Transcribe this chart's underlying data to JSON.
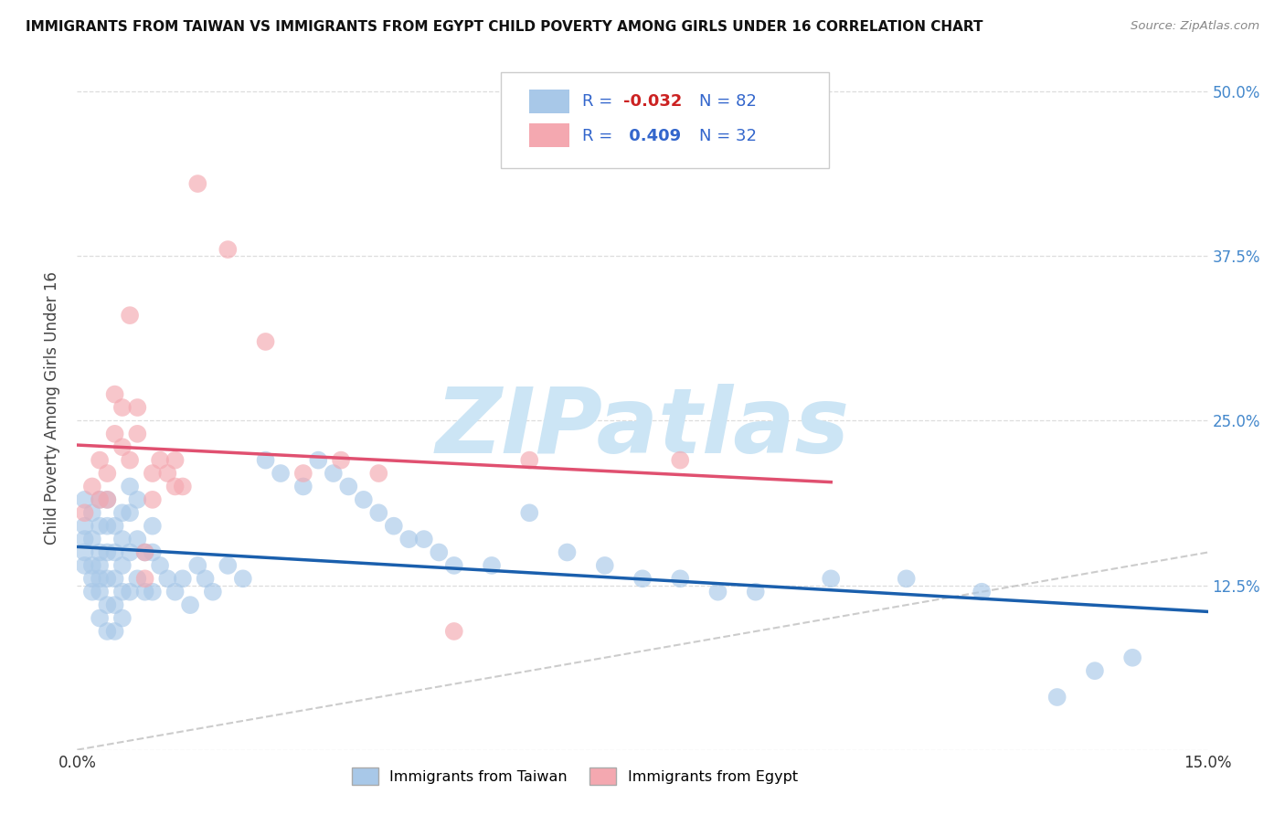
{
  "title": "IMMIGRANTS FROM TAIWAN VS IMMIGRANTS FROM EGYPT CHILD POVERTY AMONG GIRLS UNDER 16 CORRELATION CHART",
  "source": "Source: ZipAtlas.com",
  "ylabel": "Child Poverty Among Girls Under 16",
  "xlim": [
    0.0,
    0.15
  ],
  "ylim": [
    0.0,
    0.52
  ],
  "taiwan_color": "#a8c8e8",
  "egypt_color": "#f4a8b0",
  "taiwan_R": -0.032,
  "taiwan_N": 82,
  "egypt_R": 0.409,
  "egypt_N": 32,
  "taiwan_line_color": "#1a5fad",
  "egypt_line_color": "#e05070",
  "diagonal_line_color": "#c0c0c0",
  "taiwan_scatter_x": [
    0.001,
    0.001,
    0.001,
    0.001,
    0.001,
    0.002,
    0.002,
    0.002,
    0.002,
    0.002,
    0.003,
    0.003,
    0.003,
    0.003,
    0.003,
    0.003,
    0.003,
    0.004,
    0.004,
    0.004,
    0.004,
    0.004,
    0.004,
    0.005,
    0.005,
    0.005,
    0.005,
    0.005,
    0.006,
    0.006,
    0.006,
    0.006,
    0.006,
    0.007,
    0.007,
    0.007,
    0.007,
    0.008,
    0.008,
    0.008,
    0.009,
    0.009,
    0.01,
    0.01,
    0.01,
    0.011,
    0.012,
    0.013,
    0.014,
    0.015,
    0.016,
    0.017,
    0.018,
    0.02,
    0.022,
    0.025,
    0.027,
    0.03,
    0.032,
    0.034,
    0.036,
    0.038,
    0.04,
    0.042,
    0.044,
    0.046,
    0.048,
    0.05,
    0.055,
    0.06,
    0.065,
    0.07,
    0.075,
    0.08,
    0.085,
    0.09,
    0.1,
    0.11,
    0.12,
    0.13,
    0.135,
    0.14
  ],
  "taiwan_scatter_y": [
    0.19,
    0.17,
    0.16,
    0.15,
    0.14,
    0.18,
    0.16,
    0.14,
    0.13,
    0.12,
    0.19,
    0.17,
    0.15,
    0.14,
    0.13,
    0.12,
    0.1,
    0.19,
    0.17,
    0.15,
    0.13,
    0.11,
    0.09,
    0.17,
    0.15,
    0.13,
    0.11,
    0.09,
    0.18,
    0.16,
    0.14,
    0.12,
    0.1,
    0.2,
    0.18,
    0.15,
    0.12,
    0.19,
    0.16,
    0.13,
    0.15,
    0.12,
    0.17,
    0.15,
    0.12,
    0.14,
    0.13,
    0.12,
    0.13,
    0.11,
    0.14,
    0.13,
    0.12,
    0.14,
    0.13,
    0.22,
    0.21,
    0.2,
    0.22,
    0.21,
    0.2,
    0.19,
    0.18,
    0.17,
    0.16,
    0.16,
    0.15,
    0.14,
    0.14,
    0.18,
    0.15,
    0.14,
    0.13,
    0.13,
    0.12,
    0.12,
    0.13,
    0.13,
    0.12,
    0.04,
    0.06,
    0.07
  ],
  "egypt_scatter_x": [
    0.001,
    0.002,
    0.003,
    0.003,
    0.004,
    0.004,
    0.005,
    0.005,
    0.006,
    0.006,
    0.007,
    0.007,
    0.008,
    0.008,
    0.009,
    0.009,
    0.01,
    0.01,
    0.011,
    0.012,
    0.013,
    0.013,
    0.014,
    0.016,
    0.02,
    0.025,
    0.03,
    0.035,
    0.04,
    0.05,
    0.06,
    0.08
  ],
  "egypt_scatter_y": [
    0.18,
    0.2,
    0.22,
    0.19,
    0.21,
    0.19,
    0.27,
    0.24,
    0.26,
    0.23,
    0.33,
    0.22,
    0.26,
    0.24,
    0.15,
    0.13,
    0.21,
    0.19,
    0.22,
    0.21,
    0.22,
    0.2,
    0.2,
    0.43,
    0.38,
    0.31,
    0.21,
    0.22,
    0.21,
    0.09,
    0.22,
    0.22
  ],
  "watermark_text": "ZIPatlas",
  "watermark_color": "#cce5f5",
  "background_color": "#ffffff",
  "grid_color": "#dddddd",
  "right_tick_color": "#4488cc",
  "bottom_tick_color": "#333333"
}
